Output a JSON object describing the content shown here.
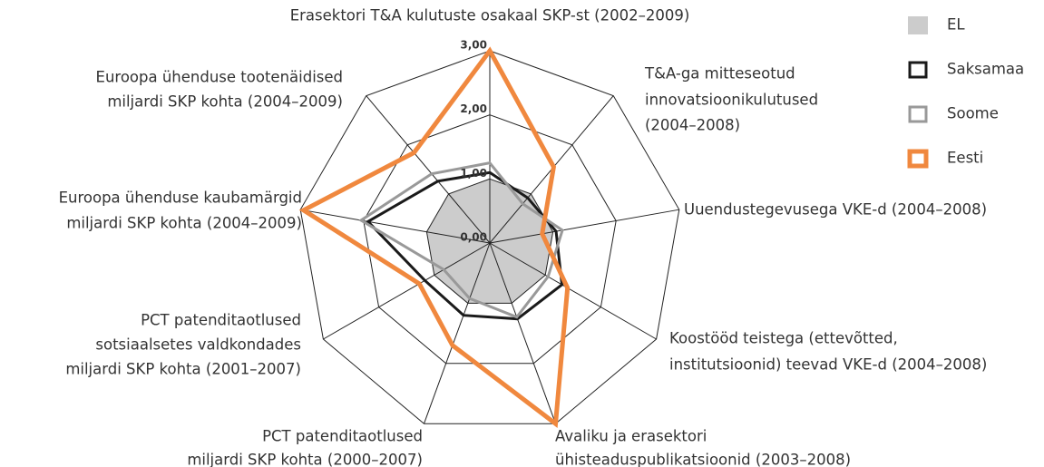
{
  "chart_data": {
    "type": "radar",
    "categories": [
      [
        "Erasektori T&A kulutuste osakaal SKP-st (2002–2009)"
      ],
      [
        "T&A-ga mitteseotud",
        "innovatsioonikulutused",
        "(2004–2008)"
      ],
      [
        "Uuendustegevusega VKE-d (2004–2008)"
      ],
      [
        "Koostööd teistega (ettevõtted,",
        "institutsioonid) teevad VKE-d (2004–2008)"
      ],
      [
        "Avaliku ja erasektori",
        "ühisteaduspublikatsioonid (2003–2008)"
      ],
      [
        "PCT patenditaotlused",
        "miljardi SKP kohta (2000–2007)"
      ],
      [
        "PCT patenditaotlused",
        "sotsiaalsetes valdkondades",
        "miljardi SKP kohta (2001–2007)"
      ],
      [
        "Euroopa ühenduse kaubamärgid",
        "miljardi SKP kohta (2004–2009)"
      ],
      [
        "Euroopa ühenduse tootenäidised",
        "miljardi SKP kohta (2004–2009)"
      ]
    ],
    "series": [
      {
        "name": "EL",
        "color": "#cccccc",
        "values": [
          1,
          1,
          1,
          1,
          1,
          1,
          1,
          1,
          1
        ]
      },
      {
        "name": "Saksamaa",
        "color": "#1a1a1a",
        "values": [
          1.1,
          0.92,
          1.05,
          1.3,
          1.26,
          1.2,
          1.17,
          1.93,
          1.26
        ]
      },
      {
        "name": "Soome",
        "color": "#999999",
        "values": [
          1.25,
          0.8,
          1.15,
          1.05,
          1.23,
          0.92,
          0.83,
          2.04,
          1.41
        ]
      },
      {
        "name": "Eesti",
        "color": "#f0883e",
        "values": [
          3.0,
          1.55,
          0.83,
          1.4,
          3.0,
          1.7,
          1.27,
          2.95,
          1.84
        ]
      }
    ],
    "ylim": [
      0,
      3
    ],
    "yticks": [
      {
        "value": 0,
        "label": "0,00"
      },
      {
        "value": 1,
        "label": "1,00"
      },
      {
        "value": 2,
        "label": "2,00"
      },
      {
        "value": 3,
        "label": "3,00"
      }
    ]
  }
}
